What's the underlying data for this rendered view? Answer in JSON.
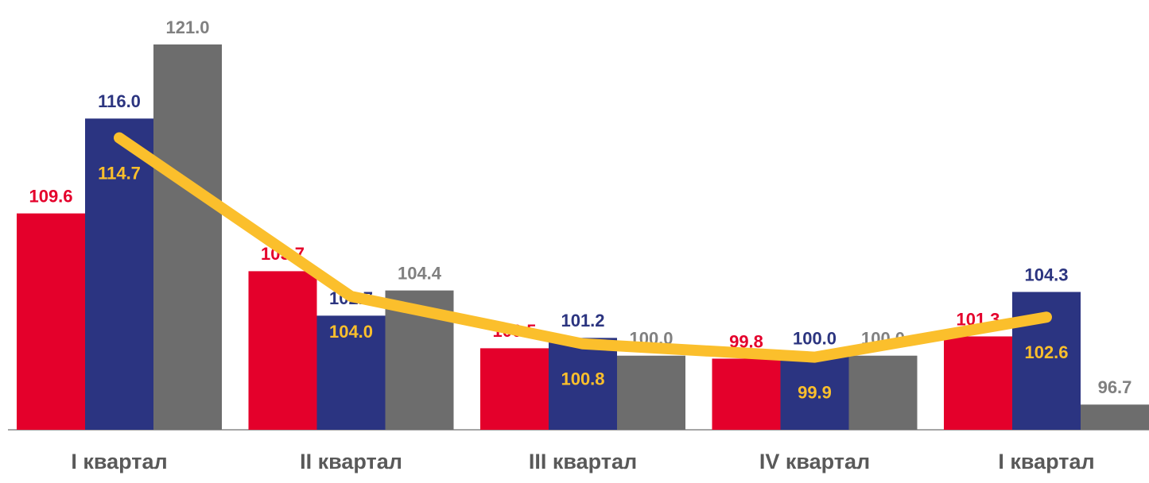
{
  "chart_data": {
    "type": "bar",
    "categories": [
      "I квартал",
      "II квартал",
      "III квартал",
      "IV квартал",
      "I квартал"
    ],
    "ylim": [
      95,
      124
    ],
    "series": [
      {
        "color": "#e4002b",
        "values": [
          109.6,
          105.7,
          100.5,
          99.8,
          101.3
        ],
        "value_labels": [
          "109.6",
          "105.7",
          "100.5",
          "99.8",
          "101.3"
        ]
      },
      {
        "color": "#2b3481",
        "values": [
          116.0,
          102.7,
          101.2,
          100.0,
          104.3
        ],
        "value_labels": [
          "116.0",
          "102.7",
          "101.2",
          "100.0",
          "104.3"
        ]
      },
      {
        "color": "#6d6d6d",
        "values": [
          121.0,
          104.4,
          100.0,
          100.0,
          96.7
        ],
        "value_labels": [
          "121.0",
          "104.4",
          "100.0",
          "100.0",
          "96.7"
        ]
      },
      {
        "type": "line",
        "color": "#fbbf2c",
        "values": [
          114.7,
          104.0,
          100.8,
          99.9,
          102.6
        ],
        "value_labels": [
          "114.7",
          "104.0",
          "100.8",
          "99.9",
          "102.6"
        ]
      }
    ]
  }
}
